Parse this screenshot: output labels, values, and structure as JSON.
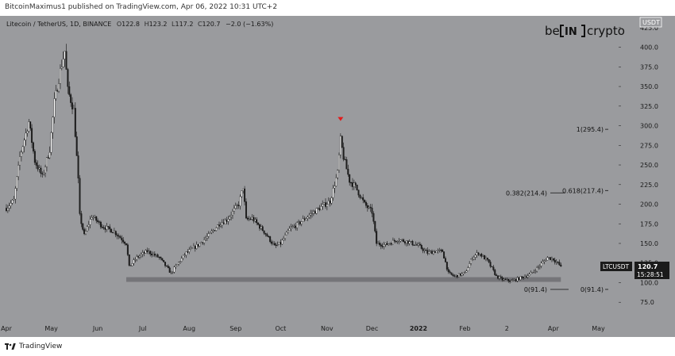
{
  "header": {
    "publish_text": "BitcoinMaximus1 published on TradingView.com, Apr 06, 2022 10:31 UTC+2"
  },
  "legend": {
    "symbol_text": "Litecoin / TetherUS, 1D, BINANCE",
    "ohlc": [
      {
        "key": "O",
        "value": "122.8"
      },
      {
        "key": "H",
        "value": "123.2"
      },
      {
        "key": "L",
        "value": "117.2"
      },
      {
        "key": "C",
        "value": "120.7"
      }
    ],
    "change": "−2.0 (−1.63%)"
  },
  "brand": {
    "left": "be",
    "mid": "IN",
    "right": "crypto"
  },
  "footer": {
    "tradingview": "TradingView"
  },
  "colors": {
    "background": "#9a9b9e",
    "up": "#ffffff",
    "down": "#1e1e1e",
    "support_zone": "#6e6f72",
    "red_marker": "#e21b1b",
    "price_label_bg": "#1b1b1b"
  },
  "chart_data": {
    "type": "candlestick",
    "title": "Litecoin / TetherUS, 1D, BINANCE",
    "currency_label": "USDT",
    "y_ticks": [
      "425.0",
      "400.0",
      "375.0",
      "350.0",
      "325.0",
      "300.0",
      "275.0",
      "250.0",
      "225.0",
      "200.0",
      "175.0",
      "150.0",
      "125.0",
      "100.0",
      "75.0"
    ],
    "y_tick_values": [
      425,
      400,
      375,
      350,
      325,
      300,
      275,
      250,
      225,
      200,
      175,
      150,
      125,
      100,
      75
    ],
    "ylim": [
      53,
      440
    ],
    "x_ticks": [
      {
        "label": "Apr",
        "date": "2021-04-01"
      },
      {
        "label": "May",
        "date": "2021-05-01"
      },
      {
        "label": "Jun",
        "date": "2021-06-01"
      },
      {
        "label": "Jul",
        "date": "2021-07-01"
      },
      {
        "label": "Aug",
        "date": "2021-08-01"
      },
      {
        "label": "Sep",
        "date": "2021-09-01"
      },
      {
        "label": "Oct",
        "date": "2021-10-01"
      },
      {
        "label": "Nov",
        "date": "2021-11-01"
      },
      {
        "label": "Dec",
        "date": "2021-12-01"
      },
      {
        "label": "2022",
        "date": "2022-01-01"
      },
      {
        "label": "Feb",
        "date": "2022-02-01"
      },
      {
        "label": "2",
        "date": "2022-03-01"
      },
      {
        "label": "Apr",
        "date": "2022-04-01"
      },
      {
        "label": "May",
        "date": "2022-05-01"
      }
    ],
    "xlim": [
      "2021-04-01",
      "2022-05-14"
    ],
    "price_path": [
      [
        "2021-04-01",
        195
      ],
      [
        "2021-04-06",
        205
      ],
      [
        "2021-04-10",
        260
      ],
      [
        "2021-04-16",
        305
      ],
      [
        "2021-04-20",
        255
      ],
      [
        "2021-04-25",
        235
      ],
      [
        "2021-04-30",
        270
      ],
      [
        "2021-05-03",
        330
      ],
      [
        "2021-05-07",
        370
      ],
      [
        "2021-05-10",
        395
      ],
      [
        "2021-05-12",
        345
      ],
      [
        "2021-05-16",
        320
      ],
      [
        "2021-05-19",
        230
      ],
      [
        "2021-05-20",
        185
      ],
      [
        "2021-05-23",
        160
      ],
      [
        "2021-05-28",
        185
      ],
      [
        "2021-06-04",
        172
      ],
      [
        "2021-06-12",
        165
      ],
      [
        "2021-06-20",
        150
      ],
      [
        "2021-06-22",
        120
      ],
      [
        "2021-06-27",
        132
      ],
      [
        "2021-07-04",
        140
      ],
      [
        "2021-07-12",
        132
      ],
      [
        "2021-07-20",
        112
      ],
      [
        "2021-07-22",
        118
      ],
      [
        "2021-07-30",
        138
      ],
      [
        "2021-08-07",
        148
      ],
      [
        "2021-08-14",
        160
      ],
      [
        "2021-08-21",
        175
      ],
      [
        "2021-08-26",
        180
      ],
      [
        "2021-09-03",
        200
      ],
      [
        "2021-09-06",
        222
      ],
      [
        "2021-09-08",
        180
      ],
      [
        "2021-09-12",
        182
      ],
      [
        "2021-09-20",
        165
      ],
      [
        "2021-09-27",
        146
      ],
      [
        "2021-10-01",
        150
      ],
      [
        "2021-10-07",
        168
      ],
      [
        "2021-10-13",
        175
      ],
      [
        "2021-10-20",
        186
      ],
      [
        "2021-10-27",
        195
      ],
      [
        "2021-11-03",
        204
      ],
      [
        "2021-11-08",
        240
      ],
      [
        "2021-11-10",
        282
      ],
      [
        "2021-11-12",
        260
      ],
      [
        "2021-11-16",
        230
      ],
      [
        "2021-11-20",
        222
      ],
      [
        "2021-11-26",
        200
      ],
      [
        "2021-12-01",
        190
      ],
      [
        "2021-12-04",
        150
      ],
      [
        "2021-12-10",
        148
      ],
      [
        "2021-12-18",
        155
      ],
      [
        "2021-12-25",
        152
      ],
      [
        "2022-01-01",
        147
      ],
      [
        "2022-01-07",
        138
      ],
      [
        "2022-01-12",
        140
      ],
      [
        "2022-01-17",
        140
      ],
      [
        "2022-01-21",
        112
      ],
      [
        "2022-01-25",
        108
      ],
      [
        "2022-02-01",
        112
      ],
      [
        "2022-02-06",
        132
      ],
      [
        "2022-02-10",
        138
      ],
      [
        "2022-02-16",
        128
      ],
      [
        "2022-02-22",
        108
      ],
      [
        "2022-02-26",
        104
      ],
      [
        "2022-03-04",
        102
      ],
      [
        "2022-03-10",
        106
      ],
      [
        "2022-03-16",
        110
      ],
      [
        "2022-03-22",
        120
      ],
      [
        "2022-03-28",
        132
      ],
      [
        "2022-04-01",
        130
      ],
      [
        "2022-04-06",
        120.7
      ]
    ],
    "support_zone": {
      "from": 101,
      "to": 107,
      "start": "2021-06-20",
      "end": "2022-04-06"
    },
    "fibonacci": [
      {
        "label": "1(295.4)",
        "price": 295.4
      },
      {
        "label": "0.618(217.4)",
        "price": 217.4
      },
      {
        "label": "0.382(214.4)",
        "price": 214.4
      },
      {
        "label": "0(91.4)",
        "price": 91.4
      },
      {
        "label": "0(91.4)",
        "price": 91.4
      }
    ],
    "marker": {
      "date": "2021-11-10",
      "price": 308
    },
    "last_price": {
      "symbol": "LTCUSDT",
      "price": "120.7",
      "countdown": "15:28:51"
    }
  }
}
